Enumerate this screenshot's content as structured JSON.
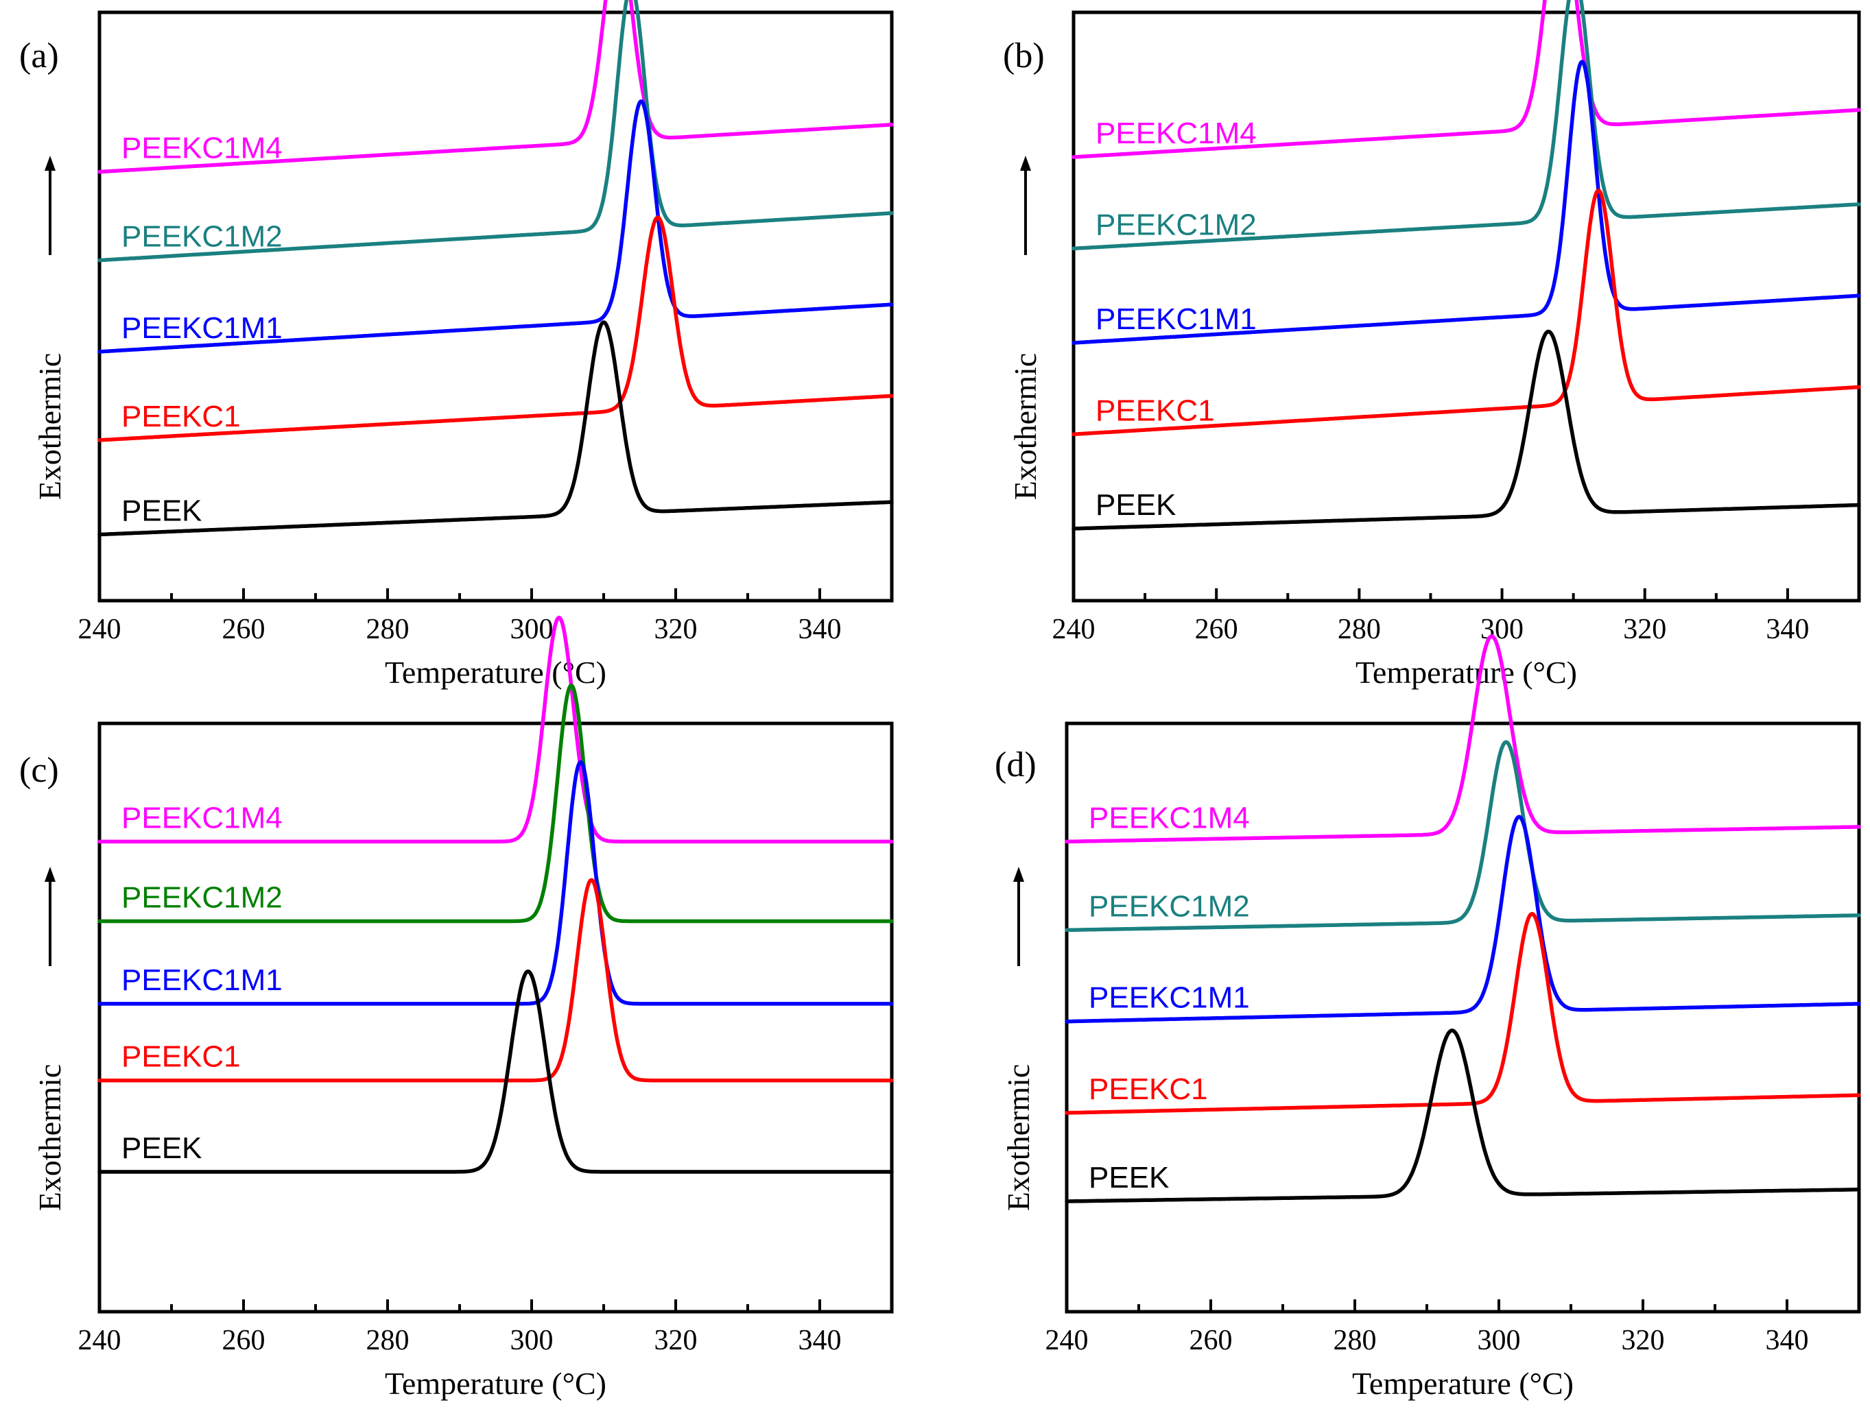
{
  "chart_data": [
    {
      "type": "line",
      "panel": "(a)",
      "xlabel": "Temperature (°C)",
      "ylabel": "Exothermic",
      "xlim": [
        240,
        350
      ],
      "xticks": [
        240,
        260,
        280,
        300,
        320,
        340
      ],
      "series": [
        {
          "name": "PEEKC1M4",
          "color": "#ff00ff",
          "peak_x": 312,
          "base_start": 1.28,
          "base_end": 1.44,
          "height": 0.7,
          "width": 2.0
        },
        {
          "name": "PEEKC1M2",
          "color": "#1b8080",
          "peak_x": 313.8,
          "base_start": 0.98,
          "base_end": 1.14,
          "height": 0.82,
          "width": 1.9
        },
        {
          "name": "PEEKC1M1",
          "color": "#0000ff",
          "peak_x": 315.2,
          "base_start": 0.67,
          "base_end": 0.83,
          "height": 0.74,
          "width": 1.9
        },
        {
          "name": "PEEKC1",
          "color": "#ff0000",
          "peak_x": 317.5,
          "base_start": 0.37,
          "base_end": 0.52,
          "height": 0.65,
          "width": 2.1
        },
        {
          "name": "PEEK",
          "color": "#000000",
          "peak_x": 310,
          "base_start": 0.05,
          "base_end": 0.16,
          "height": 0.65,
          "width": 2.2
        }
      ]
    },
    {
      "type": "line",
      "panel": "(b)",
      "xlabel": "Temperature (°C)",
      "ylabel": "Exothermic",
      "xlim": [
        240,
        350
      ],
      "xticks": [
        240,
        260,
        280,
        300,
        320,
        340
      ],
      "series": [
        {
          "name": "PEEKC1M4",
          "color": "#ff00ff",
          "peak_x": 308.2,
          "base_start": 1.33,
          "base_end": 1.49,
          "height": 0.76,
          "width": 2.1
        },
        {
          "name": "PEEKC1M2",
          "color": "#1b8080",
          "peak_x": 310.2,
          "base_start": 1.02,
          "base_end": 1.17,
          "height": 0.82,
          "width": 2.0
        },
        {
          "name": "PEEKC1M1",
          "color": "#0000ff",
          "peak_x": 311.2,
          "base_start": 0.7,
          "base_end": 0.86,
          "height": 0.85,
          "width": 1.9
        },
        {
          "name": "PEEKC1",
          "color": "#ff0000",
          "peak_x": 313.5,
          "base_start": 0.39,
          "base_end": 0.55,
          "height": 0.72,
          "width": 2.0
        },
        {
          "name": "PEEK",
          "color": "#000000",
          "peak_x": 306.5,
          "base_start": 0.07,
          "base_end": 0.15,
          "height": 0.62,
          "width": 2.6
        }
      ]
    },
    {
      "type": "line",
      "panel": "(c)",
      "xlabel": "Temperature (°C)",
      "ylabel": "Exothermic",
      "xlim": [
        240,
        350
      ],
      "xticks": [
        240,
        260,
        280,
        300,
        320,
        340
      ],
      "series": [
        {
          "name": "PEEKC1M4",
          "color": "#ff00ff",
          "peak_x": 303.8,
          "base_start": 1.42,
          "base_end": 1.42,
          "height": 0.76,
          "width": 2.0
        },
        {
          "name": "PEEKC1M2",
          "color": "#008000",
          "peak_x": 305.5,
          "base_start": 1.15,
          "base_end": 1.15,
          "height": 0.8,
          "width": 1.9
        },
        {
          "name": "PEEKC1M1",
          "color": "#0000ff",
          "peak_x": 306.8,
          "base_start": 0.87,
          "base_end": 0.87,
          "height": 0.82,
          "width": 1.9
        },
        {
          "name": "PEEKC1",
          "color": "#ff0000",
          "peak_x": 308.3,
          "base_start": 0.61,
          "base_end": 0.61,
          "height": 0.68,
          "width": 2.0
        },
        {
          "name": "PEEK",
          "color": "#000000",
          "peak_x": 299.5,
          "base_start": 0.3,
          "base_end": 0.3,
          "height": 0.68,
          "width": 2.4
        }
      ]
    },
    {
      "type": "line",
      "panel": "(d)",
      "xlabel": "Temperature (°C)",
      "ylabel": "Exothermic",
      "xlim": [
        240,
        350
      ],
      "xticks": [
        240,
        260,
        280,
        300,
        320,
        340
      ],
      "series": [
        {
          "name": "PEEKC1M4",
          "color": "#ff00ff",
          "peak_x": 299,
          "base_start": 1.42,
          "base_end": 1.47,
          "height": 0.67,
          "width": 2.5
        },
        {
          "name": "PEEKC1M2",
          "color": "#1b8080",
          "peak_x": 301,
          "base_start": 1.12,
          "base_end": 1.17,
          "height": 0.61,
          "width": 2.3
        },
        {
          "name": "PEEKC1M1",
          "color": "#0000ff",
          "peak_x": 302.8,
          "base_start": 0.81,
          "base_end": 0.87,
          "height": 0.66,
          "width": 2.3
        },
        {
          "name": "PEEKC1",
          "color": "#ff0000",
          "peak_x": 304.6,
          "base_start": 0.5,
          "base_end": 0.56,
          "height": 0.64,
          "width": 2.3
        },
        {
          "name": "PEEK",
          "color": "#000000",
          "peak_x": 293.5,
          "base_start": 0.2,
          "base_end": 0.24,
          "height": 0.56,
          "width": 2.8
        }
      ]
    }
  ]
}
